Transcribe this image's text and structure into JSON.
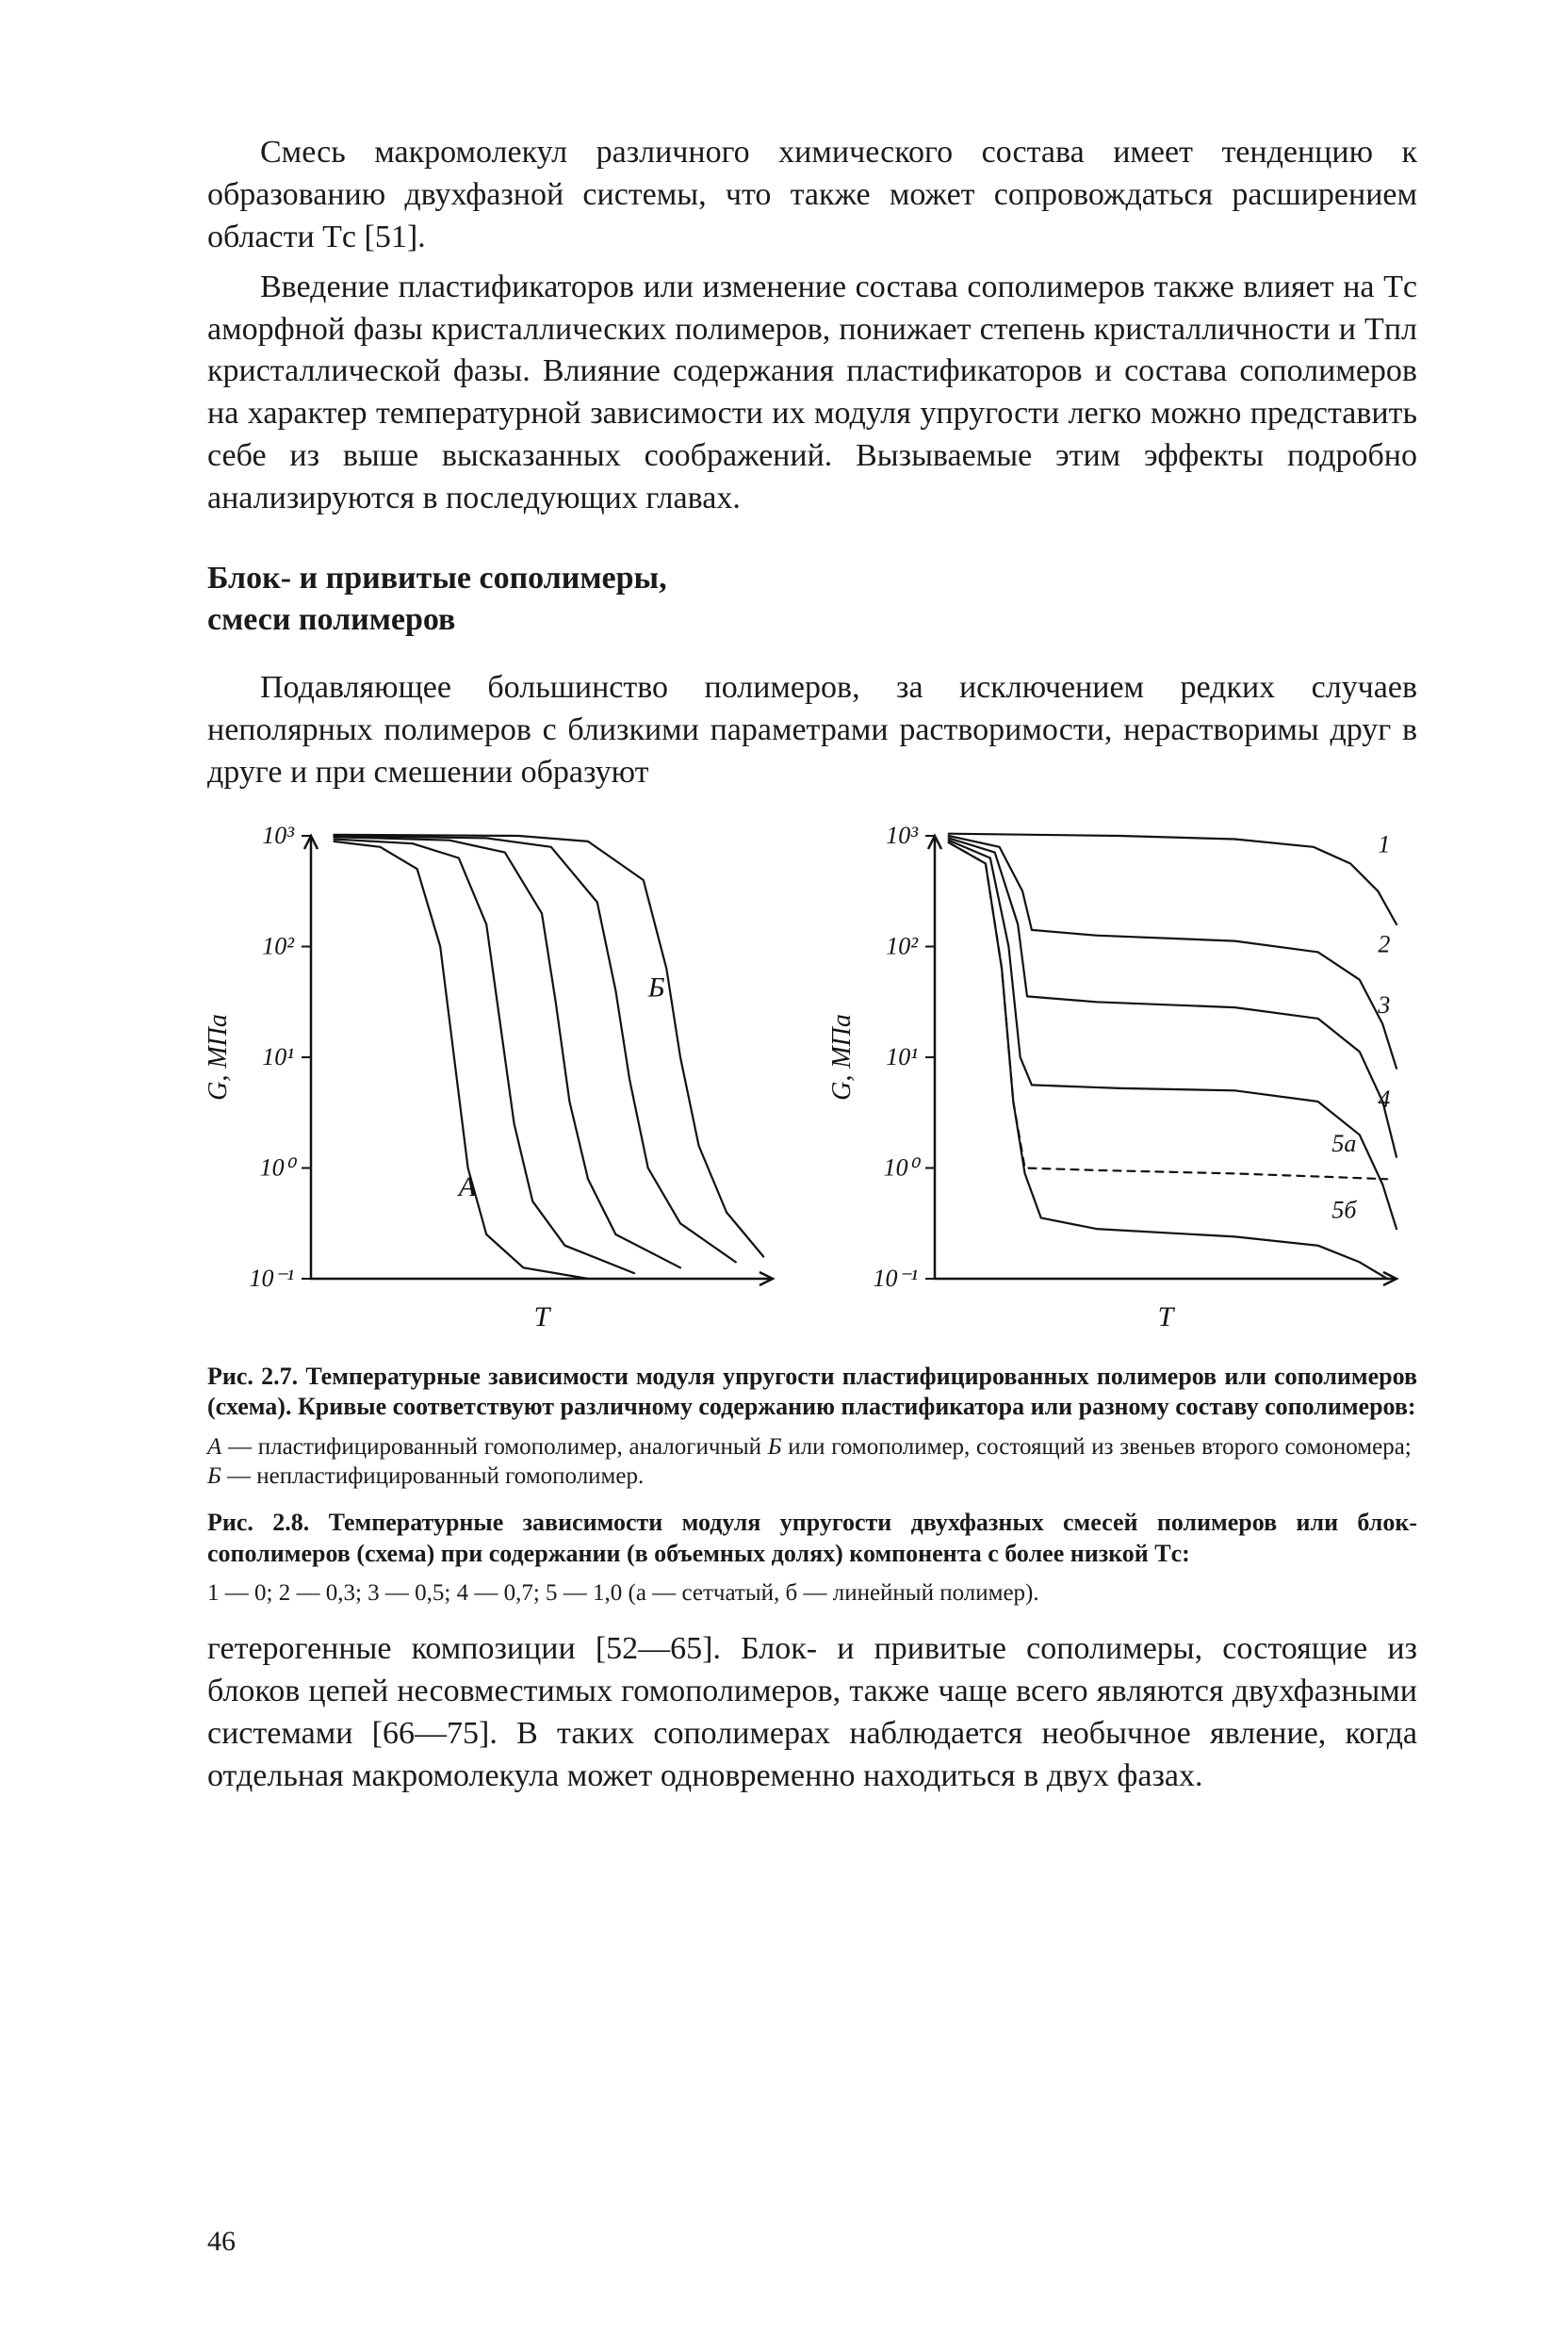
{
  "page_number": "46",
  "colors": {
    "text": "#1a1a1a",
    "background": "#ffffff",
    "stroke": "#111111"
  },
  "typography": {
    "body_fontsize_pt": 12,
    "caption_fontsize_pt": 9,
    "heading_fontsize_pt": 12,
    "family": "Times New Roman / serif"
  },
  "para1": "Смесь макромолекул различного химического состава имеет тенденцию к образованию двухфазной системы, что также может сопровождаться расширением области Tс [51].",
  "para2": "Введение пластификаторов или изменение состава сополимеров также влияет на Tс аморфной фазы кристаллических полимеров, понижает степень кристалличности и Tпл кристаллической фазы. Влияние содержания пластификаторов и состава сополимеров на характер температурной зависимости их модуля упругости легко можно представить себе из выше высказанных соображений. Вызываемые этим эффекты подробно анализируются в последующих главах.",
  "section_heading_l1": "Блок- и привитые сополимеры,",
  "section_heading_l2": "смеси полимеров",
  "para3": "Подавляющее большинство полимеров, за исключением редких случаев неполярных полимеров с близкими параметрами растворимости, нерастворимы друг в друге и при смешении образуют",
  "fig27": {
    "type": "line",
    "xlabel": "T",
    "ylabel": "G, МПа",
    "y_scale": "log",
    "ylim": [
      -1,
      3
    ],
    "ytick_labels": [
      "10⁻¹",
      "10⁰",
      "10¹",
      "10²",
      "10³"
    ],
    "ytick_vals": [
      -1,
      0,
      1,
      2,
      3
    ],
    "x_domain": [
      0,
      10
    ],
    "background_color": "#ffffff",
    "axis_color": "#111111",
    "curve_color": "#111111",
    "line_width": 2.2,
    "annotation_A": "А",
    "annotation_B": "Б",
    "curves": [
      {
        "pts": [
          [
            0.5,
            2.95
          ],
          [
            1.5,
            2.9
          ],
          [
            2.3,
            2.7
          ],
          [
            2.8,
            2.0
          ],
          [
            3.1,
            1.0
          ],
          [
            3.4,
            0.0
          ],
          [
            3.8,
            -0.6
          ],
          [
            4.6,
            -0.9
          ],
          [
            6.0,
            -1.0
          ]
        ]
      },
      {
        "pts": [
          [
            0.5,
            2.97
          ],
          [
            2.2,
            2.93
          ],
          [
            3.2,
            2.8
          ],
          [
            3.8,
            2.2
          ],
          [
            4.1,
            1.3
          ],
          [
            4.4,
            0.4
          ],
          [
            4.8,
            -0.3
          ],
          [
            5.5,
            -0.7
          ],
          [
            7.0,
            -0.95
          ]
        ]
      },
      {
        "pts": [
          [
            0.5,
            2.99
          ],
          [
            3.0,
            2.96
          ],
          [
            4.2,
            2.85
          ],
          [
            5.0,
            2.3
          ],
          [
            5.3,
            1.5
          ],
          [
            5.6,
            0.6
          ],
          [
            6.0,
            -0.1
          ],
          [
            6.6,
            -0.6
          ],
          [
            8.0,
            -0.9
          ]
        ]
      },
      {
        "pts": [
          [
            0.5,
            3.0
          ],
          [
            3.8,
            2.98
          ],
          [
            5.2,
            2.9
          ],
          [
            6.2,
            2.4
          ],
          [
            6.6,
            1.6
          ],
          [
            6.9,
            0.8
          ],
          [
            7.3,
            0.0
          ],
          [
            8.0,
            -0.5
          ],
          [
            9.2,
            -0.85
          ]
        ]
      },
      {
        "pts": [
          [
            0.5,
            3.01
          ],
          [
            4.5,
            3.0
          ],
          [
            6.0,
            2.95
          ],
          [
            7.2,
            2.6
          ],
          [
            7.7,
            1.8
          ],
          [
            8.0,
            1.0
          ],
          [
            8.4,
            0.2
          ],
          [
            9.0,
            -0.4
          ],
          [
            9.8,
            -0.8
          ]
        ]
      }
    ]
  },
  "fig28": {
    "type": "line",
    "xlabel": "T",
    "ylabel": "G, МПа",
    "y_scale": "log",
    "ylim": [
      -1,
      3
    ],
    "ytick_labels": [
      "10⁻¹",
      "10⁰",
      "10¹",
      "10²",
      "10³"
    ],
    "ytick_vals": [
      -1,
      0,
      1,
      2,
      3
    ],
    "x_domain": [
      0,
      10
    ],
    "background_color": "#ffffff",
    "axis_color": "#111111",
    "curve_color": "#111111",
    "line_width": 2.2,
    "curve_labels": [
      "1",
      "2",
      "3",
      "4",
      "5а",
      "5б"
    ],
    "curves": [
      {
        "label": "1",
        "pts": [
          [
            0.3,
            3.02
          ],
          [
            4.0,
            3.0
          ],
          [
            6.5,
            2.97
          ],
          [
            8.2,
            2.9
          ],
          [
            9.0,
            2.75
          ],
          [
            9.6,
            2.5
          ],
          [
            10.0,
            2.2
          ]
        ]
      },
      {
        "label": "2",
        "pts": [
          [
            0.3,
            3.0
          ],
          [
            1.4,
            2.9
          ],
          [
            1.9,
            2.5
          ],
          [
            2.1,
            2.15
          ],
          [
            3.5,
            2.1
          ],
          [
            6.5,
            2.05
          ],
          [
            8.3,
            1.95
          ],
          [
            9.2,
            1.7
          ],
          [
            9.7,
            1.3
          ],
          [
            10.0,
            0.9
          ]
        ]
      },
      {
        "label": "3",
        "pts": [
          [
            0.3,
            2.98
          ],
          [
            1.3,
            2.85
          ],
          [
            1.8,
            2.2
          ],
          [
            2.0,
            1.55
          ],
          [
            3.5,
            1.5
          ],
          [
            6.5,
            1.45
          ],
          [
            8.3,
            1.35
          ],
          [
            9.2,
            1.05
          ],
          [
            9.7,
            0.6
          ],
          [
            10.0,
            0.1
          ]
        ]
      },
      {
        "label": "4",
        "pts": [
          [
            0.3,
            2.96
          ],
          [
            1.2,
            2.8
          ],
          [
            1.6,
            2.0
          ],
          [
            1.85,
            1.0
          ],
          [
            2.1,
            0.75
          ],
          [
            4.0,
            0.72
          ],
          [
            6.5,
            0.7
          ],
          [
            8.3,
            0.6
          ],
          [
            9.2,
            0.3
          ],
          [
            9.7,
            -0.15
          ],
          [
            10.0,
            -0.55
          ]
        ]
      },
      {
        "label": "5а",
        "dash": "8,7",
        "pts": [
          [
            0.3,
            2.94
          ],
          [
            1.1,
            2.75
          ],
          [
            1.45,
            1.8
          ],
          [
            1.7,
            0.6
          ],
          [
            1.95,
            0.0
          ],
          [
            3.5,
            -0.02
          ],
          [
            6.5,
            -0.05
          ],
          [
            8.5,
            -0.08
          ],
          [
            9.8,
            -0.1
          ]
        ]
      },
      {
        "label": "5б",
        "pts": [
          [
            0.3,
            2.94
          ],
          [
            1.1,
            2.75
          ],
          [
            1.45,
            1.8
          ],
          [
            1.7,
            0.6
          ],
          [
            1.95,
            -0.05
          ],
          [
            2.3,
            -0.45
          ],
          [
            3.5,
            -0.55
          ],
          [
            6.5,
            -0.62
          ],
          [
            8.3,
            -0.7
          ],
          [
            9.2,
            -0.85
          ],
          [
            9.8,
            -1.0
          ]
        ]
      }
    ]
  },
  "caption27_bold": "Рис. 2.7. Температурные зависимости модуля упругости пластифицированных полимеров или сополимеров (схема). Кривые соответствуют различному содержанию пластификатора или разному составу сополимеров:",
  "caption27_small": "А — пластифицированный гомополимер, аналогичный Б или гомополимер, состоящий из звеньев второго сомономера;  Б — непластифицированный гомополимер.",
  "caption28_bold": "Рис. 2.8. Температурные зависимости модуля упругости двухфазных смесей полимеров или блок-сополимеров (схема) при содержании (в объемных долях) компонента с более низкой Tс:",
  "caption28_key": "1 — 0;  2 — 0,3;  3 — 0,5;  4 — 0,7;  5 — 1,0  (а — сетчатый,  б — линейный полимер).",
  "para4": "гетерогенные композиции [52—65]. Блок- и привитые сополимеры, состоящие из блоков цепей несовместимых гомополимеров, также чаще всего являются двухфазными системами [66—75]. В таких сополимерах наблюдается необычное явление, когда отдельная макромолекула может одновременно находиться в двух фазах."
}
